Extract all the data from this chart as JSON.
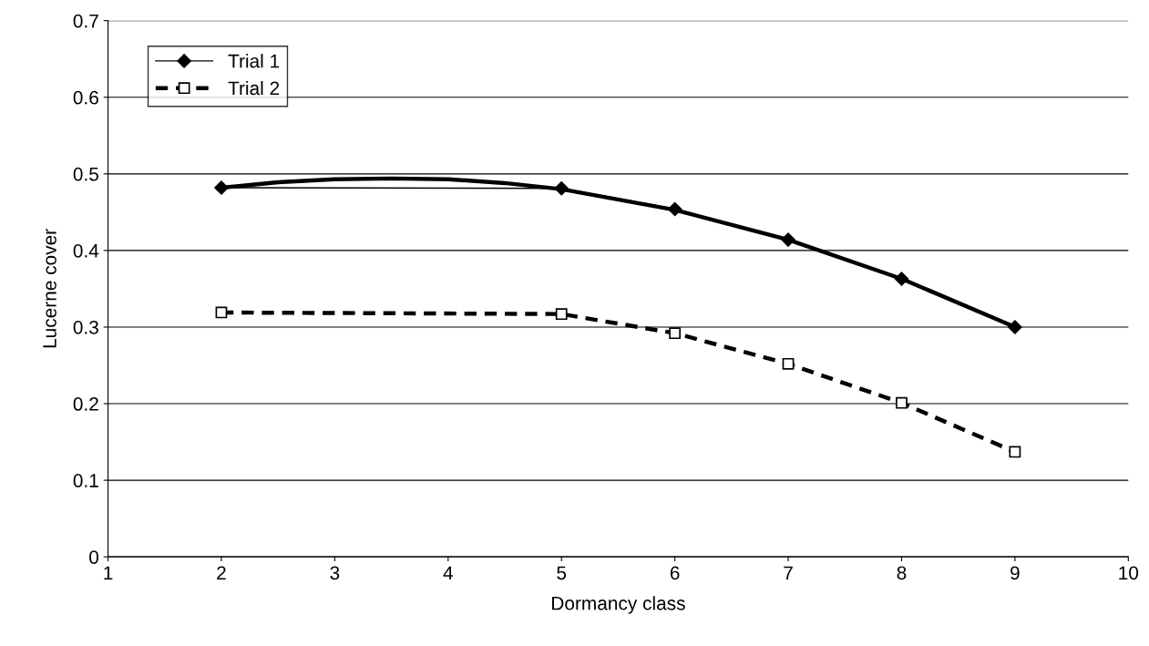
{
  "chart_data": {
    "type": "line",
    "xlabel": "Dormancy class",
    "ylabel": "Lucerne cover",
    "xlim": [
      1,
      10
    ],
    "xticks": [
      1,
      2,
      3,
      4,
      5,
      6,
      7,
      8,
      9,
      10
    ],
    "ylim": [
      0,
      0.7
    ],
    "yticks": [
      0,
      0.1,
      0.2,
      0.3,
      0.4,
      0.5,
      0.6,
      0.7
    ],
    "grid": "y",
    "legend": "top left",
    "series": [
      {
        "name": "Trial 1",
        "color": "#000000",
        "marker": "diamond",
        "line_style": "solid",
        "x": [
          2,
          5,
          6,
          7,
          8,
          9
        ],
        "values": [
          0.482,
          0.481,
          0.454,
          0.414,
          0.363,
          0.3
        ]
      },
      {
        "color": "#000000",
        "marker": "none",
        "line_style": "solid",
        "x": [
          2,
          2.5,
          3,
          3.5,
          4,
          4.5,
          5,
          6,
          7,
          8,
          9
        ],
        "values": [
          0.482,
          0.489,
          0.493,
          0.494,
          0.493,
          0.488,
          0.48,
          0.453,
          0.414,
          0.363,
          0.3
        ]
      },
      {
        "name": "Trial 2",
        "color": "#000000",
        "marker": "square",
        "line_style": "dashed",
        "x": [
          2,
          5,
          6,
          7,
          8,
          9
        ],
        "values": [
          0.319,
          0.317,
          0.292,
          0.252,
          0.201,
          0.137
        ]
      }
    ]
  }
}
